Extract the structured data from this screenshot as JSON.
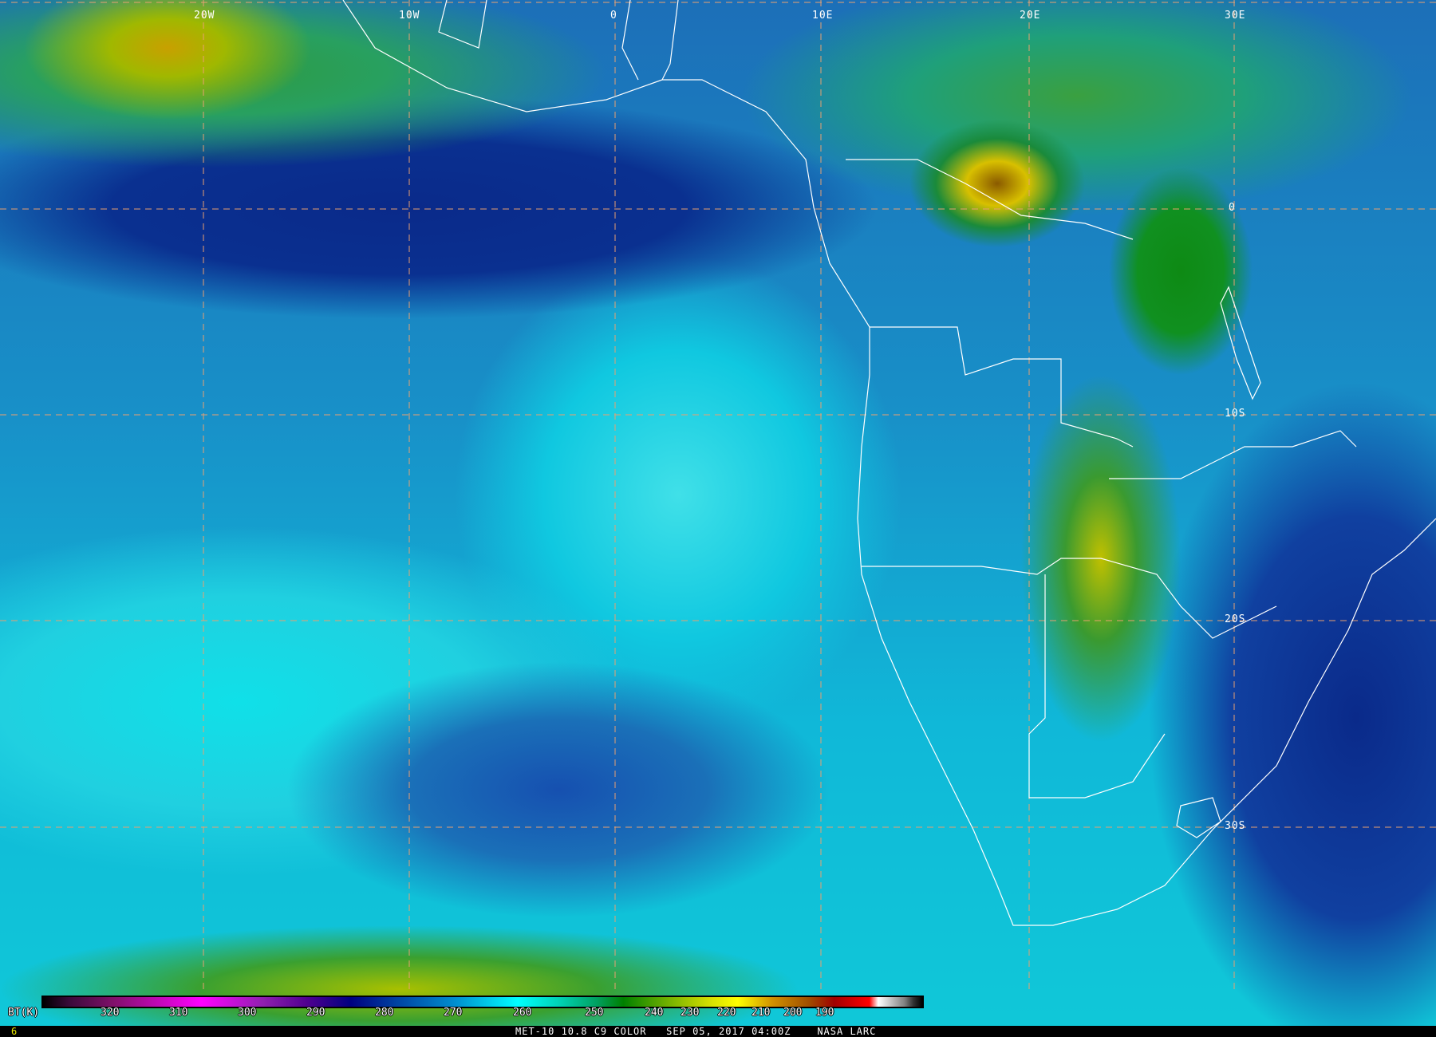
{
  "map": {
    "longitude_labels": [
      "20W",
      "10W",
      "0",
      "10E",
      "20E",
      "30E"
    ],
    "latitude_labels": [
      "0",
      "10S",
      "20S",
      "30S"
    ],
    "colors": {
      "border": "#ffffff",
      "graticule": "#e8a070"
    }
  },
  "colorbar": {
    "unit_label": "BT(K)",
    "ticks": [
      "320",
      "310",
      "300",
      "290",
      "280",
      "270",
      "260",
      "250",
      "240",
      "230",
      "220",
      "210",
      "200",
      "190"
    ]
  },
  "footer": {
    "frame_number": "6",
    "caption": "MET-10 10.8 C9 COLOR   SEP 05, 2017 04:00Z    NASA LARC"
  }
}
